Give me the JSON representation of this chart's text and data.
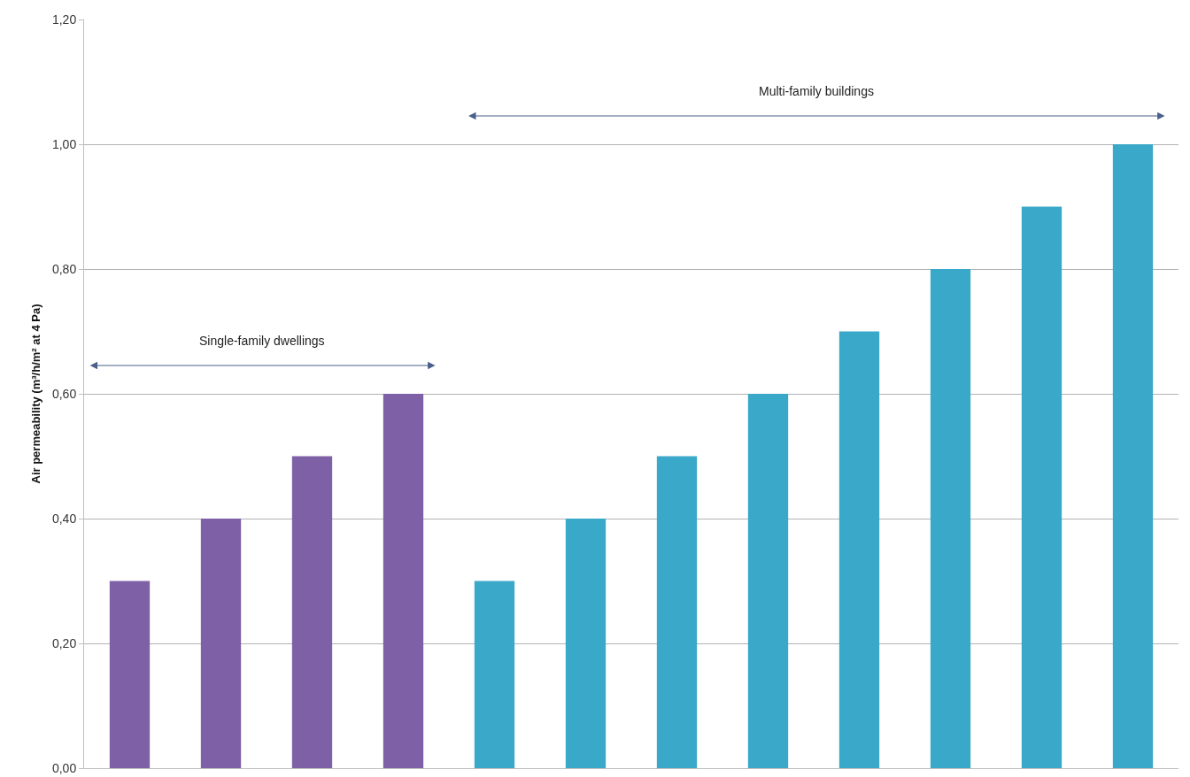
{
  "chart_data": {
    "type": "bar",
    "ylabel": "Air permeability (m³/h/m² at 4 Pa)",
    "categories": [
      null,
      null,
      null,
      null,
      null,
      null,
      null,
      null,
      null,
      null,
      null,
      null
    ],
    "series": [
      {
        "color": "#7e60a6",
        "values": [
          0.3,
          0.4,
          0.5,
          0.6,
          null,
          null,
          null,
          null,
          null,
          null,
          null,
          null
        ]
      },
      {
        "color": "#3aa8c8",
        "values": [
          null,
          null,
          null,
          null,
          0.3,
          0.4,
          0.5,
          0.6,
          0.7,
          0.8,
          0.9,
          1.0
        ]
      }
    ],
    "annotations": [
      "Single-family dwellings",
      "Multi-family buildings"
    ],
    "ylim": [
      0,
      1.2
    ],
    "yticks": [
      {
        "value": 0,
        "label": "0,00"
      },
      {
        "value": 0.2,
        "label": "0,20"
      },
      {
        "value": 0.4,
        "label": "0,40"
      },
      {
        "value": 0.6,
        "label": "0,60"
      },
      {
        "value": 0.8,
        "label": "0,80"
      },
      {
        "value": 1.0,
        "label": "1,00"
      },
      {
        "value": 1.2,
        "label": "1,20"
      }
    ],
    "grid": "y"
  }
}
